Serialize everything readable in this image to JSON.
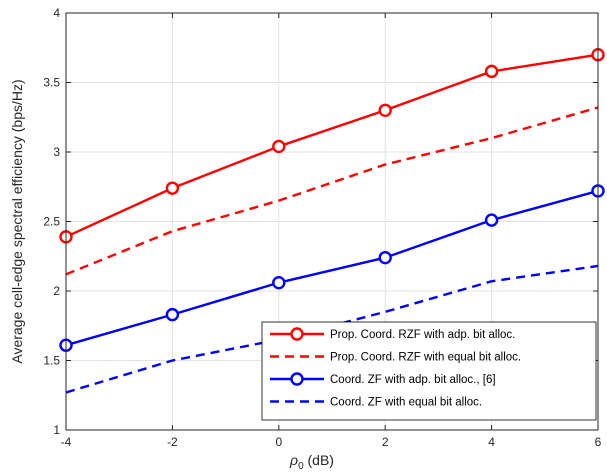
{
  "chart_data": {
    "type": "line",
    "xlabel": "ρ",
    "xlabel_sub": "0",
    "xlabel_unit": " (dB)",
    "ylabel": "Average cell-edge spectral efficiency (bps/Hz)",
    "x": [
      -4,
      -2,
      0,
      2,
      4,
      6
    ],
    "xlim": [
      -4,
      6
    ],
    "ylim": [
      1,
      4
    ],
    "xticks": [
      -4,
      -2,
      0,
      2,
      4,
      6
    ],
    "yticks": [
      1,
      1.5,
      2,
      2.5,
      3,
      3.5,
      4
    ],
    "xtick_labels": [
      "-4",
      "-2",
      "0",
      "2",
      "4",
      "6"
    ],
    "ytick_labels": [
      "1",
      "1.5",
      "2",
      "2.5",
      "3",
      "3.5",
      "4"
    ],
    "grid": true,
    "legend_position": "bottom-right",
    "series": [
      {
        "name": "Prop. Coord. RZF with adp. bit alloc.",
        "values": [
          2.39,
          2.74,
          3.04,
          3.3,
          3.58,
          3.7
        ],
        "color": "#ff0000",
        "dashed": false,
        "marker": "circle"
      },
      {
        "name": "Prop. Coord. RZF with equal bit alloc.",
        "values": [
          2.12,
          2.43,
          2.65,
          2.91,
          3.1,
          3.32
        ],
        "color": "#ff0000",
        "dashed": true,
        "marker": "none"
      },
      {
        "name": "Coord. ZF with adp. bit alloc., [6]",
        "values": [
          1.61,
          1.83,
          2.06,
          2.24,
          2.51,
          2.72
        ],
        "color": "#0000ff",
        "dashed": false,
        "marker": "circle"
      },
      {
        "name": "Coord. ZF with equal bit alloc.",
        "values": [
          1.27,
          1.5,
          1.65,
          1.85,
          2.07,
          2.18
        ],
        "color": "#0000ff",
        "dashed": true,
        "marker": "none"
      }
    ]
  }
}
